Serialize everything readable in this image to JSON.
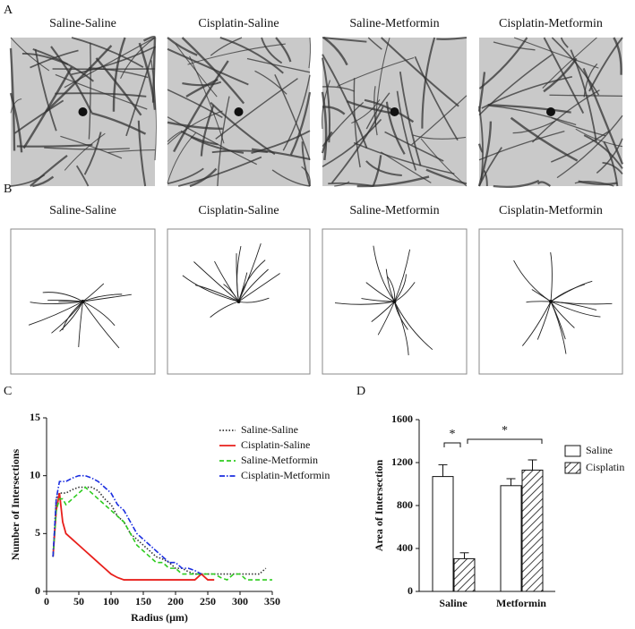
{
  "figure": {
    "panel_a": {
      "label": "A",
      "titles": [
        "Saline-Saline",
        "Cisplatin-Saline",
        "Saline-Metformin",
        "Cisplatin-Metformin"
      ]
    },
    "panel_b": {
      "label": "B",
      "titles": [
        "Saline-Saline",
        "Cisplatin-Saline",
        "Saline-Metformin",
        "Cisplatin-Metformin"
      ]
    }
  },
  "chart_data": [
    {
      "type": "line",
      "panel": "C",
      "xlabel": "Radius (μm)",
      "ylabel": "Number of Intersections",
      "x": [
        10,
        15,
        20,
        25,
        30,
        40,
        50,
        60,
        70,
        80,
        90,
        100,
        110,
        120,
        130,
        140,
        150,
        160,
        170,
        180,
        190,
        200,
        210,
        220,
        230,
        240,
        250,
        260,
        270,
        280,
        290,
        300,
        310,
        320,
        330,
        340,
        350
      ],
      "series": [
        {
          "name": "Saline-Saline",
          "color": "#333333",
          "style": "dotted",
          "values": [
            3,
            8,
            8.5,
            8.5,
            8.5,
            8.8,
            9,
            9,
            9,
            8.7,
            8,
            7.5,
            6.5,
            6,
            5,
            4.5,
            4,
            3.5,
            3,
            2.8,
            2.5,
            2,
            2,
            1.7,
            1.5,
            1.5,
            1.5,
            1.5,
            1.5,
            1.5,
            1.5,
            1.5,
            1.5,
            1.5,
            1.5,
            2,
            null
          ]
        },
        {
          "name": "Cisplatin-Saline",
          "color": "#e8201c",
          "style": "solid",
          "values": [
            3,
            7,
            8.5,
            6,
            5,
            4.5,
            4,
            3.5,
            3,
            2.5,
            2,
            1.5,
            1.2,
            1,
            1,
            1,
            1,
            1,
            1,
            1,
            1,
            1,
            1,
            1,
            1,
            1.5,
            1,
            1,
            null,
            null,
            null,
            null,
            null,
            null,
            null,
            null,
            null
          ]
        },
        {
          "name": "Saline-Metformin",
          "color": "#2ecc1f",
          "style": "dashed",
          "values": [
            3,
            7,
            8,
            8,
            7.5,
            8,
            8.5,
            9,
            8.5,
            8,
            7.5,
            7,
            6.5,
            6,
            5,
            4,
            3.5,
            3,
            2.5,
            2.5,
            2,
            2,
            1.5,
            1.5,
            1.5,
            1.5,
            1.5,
            1.5,
            1.2,
            1,
            1.5,
            1.5,
            1,
            1,
            1,
            1,
            1
          ]
        },
        {
          "name": "Cisplatin-Metformin",
          "color": "#1b2ee0",
          "style": "dashdot",
          "values": [
            3,
            8,
            9.5,
            9.5,
            9.5,
            9.8,
            10,
            10,
            9.8,
            9.5,
            9,
            8.5,
            7.5,
            7,
            6,
            5,
            4.5,
            4,
            3.5,
            3,
            2.5,
            2.5,
            2,
            2,
            1.8,
            1.5,
            null,
            null,
            null,
            null,
            null,
            null,
            null,
            null,
            null,
            null,
            null
          ]
        }
      ],
      "xlim": [
        0,
        350
      ],
      "ylim": [
        0,
        15
      ],
      "xticks": [
        0,
        50,
        100,
        150,
        200,
        250,
        300,
        350
      ],
      "yticks": [
        0,
        5,
        10,
        15
      ],
      "legend": "right"
    },
    {
      "type": "bar",
      "panel": "D",
      "ylabel": "Area of Intersection",
      "categories": [
        "Saline",
        "Metformin"
      ],
      "series": [
        {
          "name": "Saline",
          "color": "#ffffff",
          "hatch": false,
          "values": [
            1070,
            985
          ],
          "errors": [
            110,
            65
          ]
        },
        {
          "name": "Cisplatin",
          "color": "#ffffff",
          "hatch": true,
          "values": [
            305,
            1130
          ],
          "errors": [
            55,
            95
          ]
        }
      ],
      "annotations": [
        "*",
        "*"
      ],
      "ylim": [
        0,
        1600
      ],
      "yticks": [
        0,
        400,
        800,
        1200,
        1600
      ],
      "legend": "right"
    }
  ]
}
